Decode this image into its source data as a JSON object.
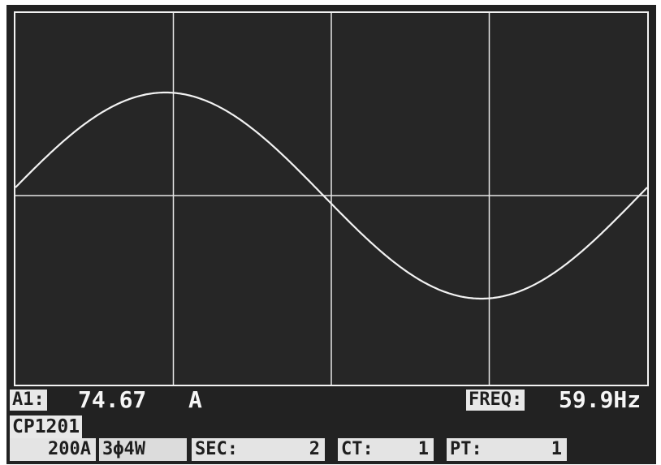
{
  "channel": {
    "label": "A1:",
    "value": "74.67",
    "unit": "A"
  },
  "frequency": {
    "label": "FREQ:",
    "value": "59.9Hz"
  },
  "probe": {
    "model": "CP1201",
    "range": "200A"
  },
  "wiring": {
    "label": "3ϕ4W"
  },
  "settings": {
    "sec": {
      "label": "SEC:",
      "value": "2"
    },
    "ct": {
      "label": "CT:",
      "value": "1"
    },
    "pt": {
      "label": "PT:",
      "value": "1"
    }
  },
  "colors": {
    "background": "#222222",
    "trace": "#f2f2f2",
    "grid": "#e6e6e6"
  },
  "chart_data": {
    "type": "line",
    "x_divisions": 4,
    "y_divisions": 2,
    "waveform": "sine",
    "cycles_shown": 1,
    "phase_offset_divisions": -0.05,
    "grid": true
  }
}
